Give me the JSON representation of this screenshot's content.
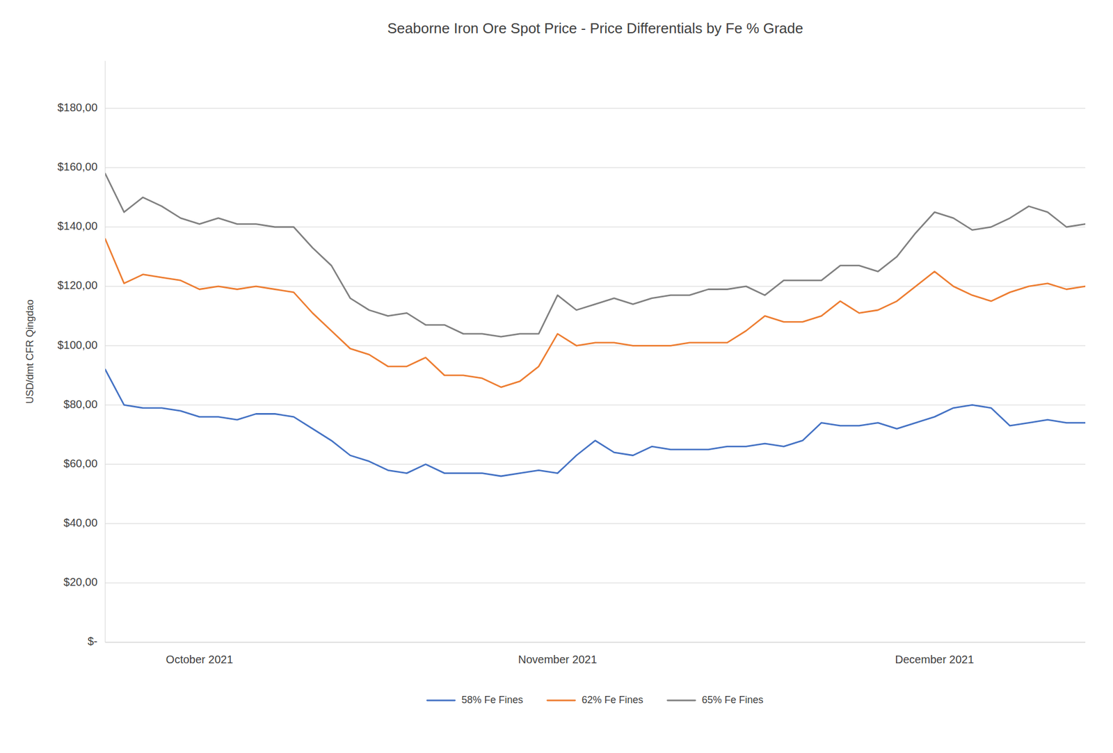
{
  "chart_data": {
    "type": "line",
    "title": "Seaborne Iron Ore Spot Price - Price Differentials by Fe % Grade",
    "y_label": "USD/dmt CFR Qingdao",
    "categories": [
      null,
      null,
      null,
      null,
      null,
      "October 2021",
      null,
      null,
      null,
      null,
      null,
      null,
      null,
      null,
      null,
      null,
      null,
      null,
      null,
      null,
      null,
      null,
      null,
      null,
      "November 2021",
      null,
      null,
      null,
      null,
      null,
      null,
      null,
      null,
      null,
      null,
      null,
      null,
      null,
      null,
      null,
      null,
      null,
      null,
      null,
      "December 2021",
      null,
      null,
      null,
      null,
      null,
      null,
      null,
      null
    ],
    "ylim": [
      0,
      196
    ],
    "yticks": [
      {
        "value": 0,
        "label": "$-"
      },
      {
        "value": 20,
        "label": "$20,00"
      },
      {
        "value": 40,
        "label": "$40,00"
      },
      {
        "value": 60,
        "label": "$60,00"
      },
      {
        "value": 80,
        "label": "$80,00"
      },
      {
        "value": 100,
        "label": "$100,00"
      },
      {
        "value": 120,
        "label": "$120,00"
      },
      {
        "value": 140,
        "label": "$140,00"
      },
      {
        "value": 160,
        "label": "$160,00"
      },
      {
        "value": 180,
        "label": "$180,00"
      }
    ],
    "grid": true,
    "legend": "bottom",
    "series": [
      {
        "name": "58% Fe Fines",
        "color": "#4472C4",
        "values": [
          92,
          80,
          79,
          79,
          78,
          76,
          76,
          75,
          77,
          77,
          76,
          72,
          68,
          63,
          61,
          58,
          57,
          60,
          57,
          57,
          57,
          56,
          57,
          58,
          57,
          63,
          68,
          64,
          63,
          66,
          65,
          65,
          65,
          66,
          66,
          67,
          66,
          68,
          74,
          73,
          73,
          74,
          72,
          74,
          76,
          79,
          80,
          79,
          73,
          74,
          75,
          74,
          74
        ]
      },
      {
        "name": "62% Fe Fines",
        "color": "#ED7D31",
        "values": [
          136,
          121,
          124,
          123,
          122,
          119,
          120,
          119,
          120,
          119,
          118,
          111,
          105,
          99,
          97,
          93,
          93,
          96,
          90,
          90,
          89,
          86,
          88,
          93,
          104,
          100,
          101,
          101,
          100,
          100,
          100,
          101,
          101,
          101,
          105,
          110,
          108,
          108,
          110,
          115,
          111,
          112,
          115,
          120,
          125,
          120,
          117,
          115,
          118,
          120,
          121,
          119,
          120
        ]
      },
      {
        "name": "65% Fe Fines",
        "color": "#808080",
        "values": [
          158,
          145,
          150,
          147,
          143,
          141,
          143,
          141,
          141,
          140,
          140,
          133,
          127,
          116,
          112,
          110,
          111,
          107,
          107,
          104,
          104,
          103,
          104,
          104,
          117,
          112,
          114,
          116,
          114,
          116,
          117,
          117,
          119,
          119,
          120,
          117,
          122,
          122,
          122,
          127,
          127,
          125,
          130,
          138,
          145,
          143,
          139,
          140,
          143,
          147,
          145,
          140,
          141
        ]
      }
    ]
  }
}
